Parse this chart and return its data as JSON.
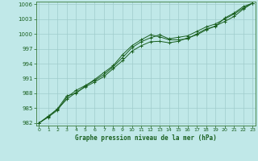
{
  "title": "Graphe pression niveau de la mer (hPa)",
  "background_color": "#c0e8e8",
  "grid_color": "#a0cccc",
  "line_color": "#1a6020",
  "spine_color": "#3a7a3a",
  "x_ticks": [
    0,
    1,
    2,
    3,
    4,
    5,
    6,
    7,
    8,
    9,
    10,
    11,
    12,
    13,
    14,
    15,
    16,
    17,
    18,
    19,
    20,
    21,
    22,
    23
  ],
  "ylim": [
    981.5,
    1006.5
  ],
  "yticks": [
    982,
    985,
    988,
    991,
    994,
    997,
    1000,
    1003,
    1006
  ],
  "xlim": [
    -0.3,
    23.3
  ],
  "line1": [
    982.0,
    983.4,
    984.8,
    986.8,
    988.2,
    989.3,
    990.3,
    991.4,
    993.0,
    994.6,
    996.5,
    997.6,
    998.4,
    998.5,
    998.2,
    998.5,
    999.2,
    999.8,
    1000.8,
    1001.6,
    1002.5,
    1003.5,
    1005.0,
    1006.2
  ],
  "line2": [
    982.0,
    983.2,
    984.6,
    987.2,
    988.6,
    989.6,
    990.6,
    991.8,
    993.4,
    995.2,
    997.2,
    998.4,
    999.2,
    999.8,
    999.0,
    999.3,
    999.6,
    1000.5,
    1001.4,
    1002.0,
    1003.0,
    1004.0,
    1005.2,
    1006.2
  ],
  "line3": [
    982.0,
    983.3,
    984.9,
    987.5,
    988.0,
    989.5,
    990.8,
    992.2,
    993.6,
    995.8,
    997.6,
    998.8,
    999.8,
    999.4,
    998.8,
    998.8,
    999.0,
    1000.0,
    1001.0,
    1001.5,
    1003.2,
    1004.2,
    1005.5,
    1006.2
  ]
}
